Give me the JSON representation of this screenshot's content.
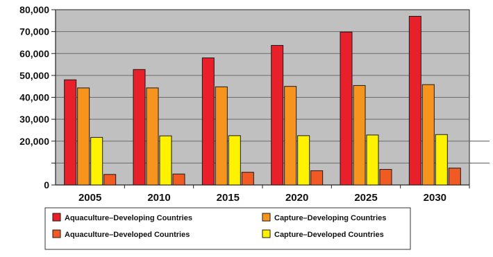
{
  "chart_data": {
    "type": "bar",
    "title": "",
    "xlabel": "",
    "ylabel": "",
    "categories": [
      "2005",
      "2010",
      "2015",
      "2020",
      "2025",
      "2030"
    ],
    "ylim": [
      0,
      80000
    ],
    "y_ticks": [
      {
        "value": 0,
        "label": "0"
      },
      {
        "value": 20000,
        "label": "20,000"
      },
      {
        "value": 30000,
        "label": "30,000"
      },
      {
        "value": 40000,
        "label": "40,000"
      },
      {
        "value": 50000,
        "label": "50,000"
      },
      {
        "value": 60000,
        "label": "60,000"
      },
      {
        "value": 70000,
        "label": "70,000"
      },
      {
        "value": 80000,
        "label": "80,000"
      }
    ],
    "grid": true,
    "legend_position": "bottom",
    "plot_background": "#c0c0c0",
    "series": [
      {
        "name": "Aquaculture–Developing Countries",
        "color": "#e8202a",
        "values": [
          48000,
          52700,
          58000,
          63700,
          69800,
          77000
        ]
      },
      {
        "name": "Capture–Developing Countries",
        "color": "#f7941d",
        "values": [
          44300,
          44300,
          44800,
          45000,
          45400,
          45800
        ]
      },
      {
        "name": "Capture–Developed Countries",
        "color": "#fff200",
        "values": [
          21700,
          22400,
          22500,
          22500,
          22800,
          23000
        ]
      },
      {
        "name": "Aquaculture–Developed Countries",
        "color": "#f15a22",
        "values": [
          4800,
          5000,
          5800,
          6500,
          7100,
          7700
        ]
      }
    ],
    "legend_order": [
      0,
      1,
      3,
      2
    ]
  }
}
